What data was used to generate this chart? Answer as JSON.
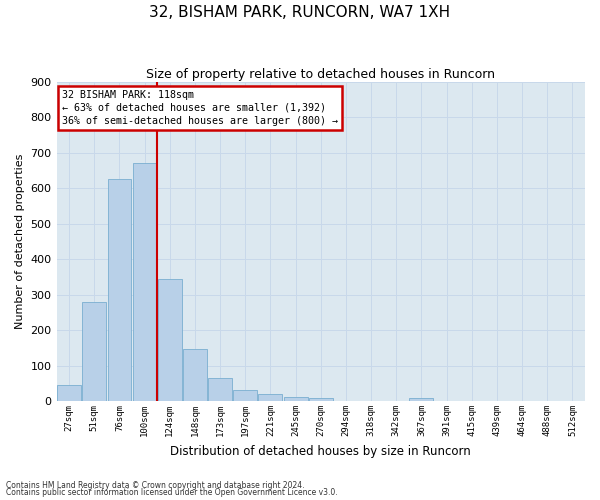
{
  "title": "32, BISHAM PARK, RUNCORN, WA7 1XH",
  "subtitle": "Size of property relative to detached houses in Runcorn",
  "xlabel": "Distribution of detached houses by size in Runcorn",
  "ylabel": "Number of detached properties",
  "bar_labels": [
    "27sqm",
    "51sqm",
    "76sqm",
    "100sqm",
    "124sqm",
    "148sqm",
    "173sqm",
    "197sqm",
    "221sqm",
    "245sqm",
    "270sqm",
    "294sqm",
    "318sqm",
    "342sqm",
    "367sqm",
    "391sqm",
    "415sqm",
    "439sqm",
    "464sqm",
    "488sqm",
    "512sqm"
  ],
  "bar_values": [
    45,
    280,
    625,
    670,
    345,
    148,
    65,
    32,
    20,
    12,
    10,
    0,
    0,
    0,
    10,
    0,
    0,
    0,
    0,
    0,
    0
  ],
  "bar_color": "#b8d0e8",
  "bar_edge_color": "#7aaed0",
  "vline_color": "#cc0000",
  "annotation_title": "32 BISHAM PARK: 118sqm",
  "annotation_line1": "← 63% of detached houses are smaller (1,392)",
  "annotation_line2": "36% of semi-detached houses are larger (800) →",
  "annotation_box_edgecolor": "#cc0000",
  "ylim": [
    0,
    900
  ],
  "yticks": [
    0,
    100,
    200,
    300,
    400,
    500,
    600,
    700,
    800,
    900
  ],
  "grid_color": "#c8d8ea",
  "bg_color": "#dce8f0",
  "fig_bg_color": "#ffffff",
  "footer1": "Contains HM Land Registry data © Crown copyright and database right 2024.",
  "footer2": "Contains public sector information licensed under the Open Government Licence v3.0."
}
